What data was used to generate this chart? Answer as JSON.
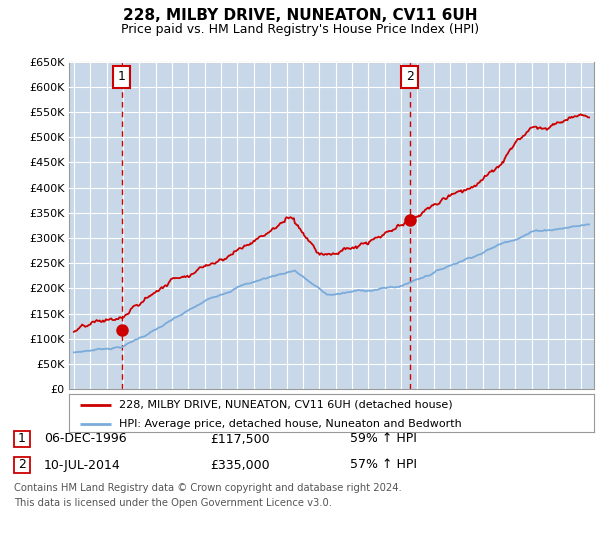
{
  "title": "228, MILBY DRIVE, NUNEATON, CV11 6UH",
  "subtitle": "Price paid vs. HM Land Registry's House Price Index (HPI)",
  "ylim": [
    0,
    650000
  ],
  "yticks": [
    0,
    50000,
    100000,
    150000,
    200000,
    250000,
    300000,
    350000,
    400000,
    450000,
    500000,
    550000,
    600000,
    650000
  ],
  "ytick_labels": [
    "£0",
    "£50K",
    "£100K",
    "£150K",
    "£200K",
    "£250K",
    "£300K",
    "£350K",
    "£400K",
    "£450K",
    "£500K",
    "£550K",
    "£600K",
    "£650K"
  ],
  "hpi_color": "#7aabdb",
  "price_color": "#cc0000",
  "marker_color": "#cc0000",
  "annotation_box_color": "#cc0000",
  "vline_color": "#cc0000",
  "plot_bg_color": "#e8f0f8",
  "hatch_color": "#c8d8e8",
  "legend_label_price": "228, MILBY DRIVE, NUNEATON, CV11 6UH (detached house)",
  "legend_label_hpi": "HPI: Average price, detached house, Nuneaton and Bedworth",
  "annotation1_label": "1",
  "annotation1_date": "06-DEC-1996",
  "annotation1_price": "£117,500",
  "annotation1_hpi": "59% ↑ HPI",
  "annotation2_label": "2",
  "annotation2_date": "10-JUL-2014",
  "annotation2_price": "£335,000",
  "annotation2_hpi": "57% ↑ HPI",
  "footer_line1": "Contains HM Land Registry data © Crown copyright and database right 2024.",
  "footer_line2": "This data is licensed under the Open Government Licence v3.0.",
  "sale1_x": 1996.92,
  "sale1_y": 117500,
  "sale2_x": 2014.53,
  "sale2_y": 335000,
  "xlim_start": 1993.7,
  "xlim_end": 2025.8
}
